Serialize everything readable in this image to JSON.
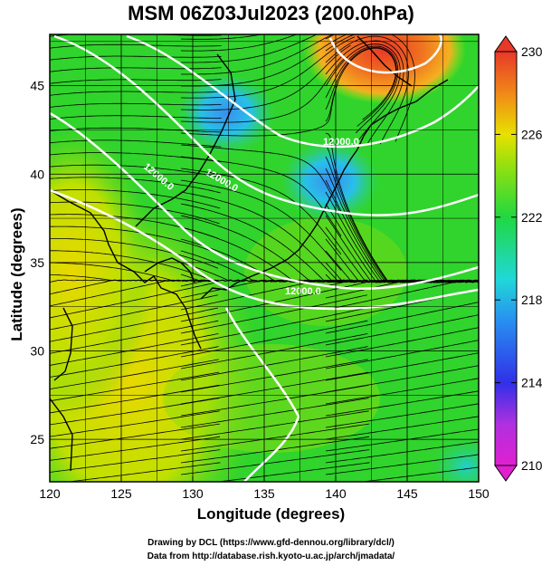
{
  "title": "MSM 06Z03Jul2023 (200.0hPa)",
  "x_axis": {
    "label": "Longitude (degrees)",
    "ticks": [
      "120",
      "125",
      "130",
      "135",
      "140",
      "145",
      "150"
    ]
  },
  "y_axis": {
    "label": "Latitude  (degrees)",
    "ticks": [
      "25",
      "30",
      "35",
      "40",
      "45"
    ]
  },
  "colorbar": {
    "ticks": [
      "230",
      "226",
      "222",
      "218",
      "214",
      "210"
    ],
    "min": 210,
    "max": 230
  },
  "contours": [
    {
      "label": "12000.0"
    },
    {
      "label": "12000.0"
    },
    {
      "label": "12000.0"
    },
    {
      "label": "12000.0"
    }
  ],
  "credits": {
    "line1": "Drawing by DCL (https://www.gfd-dennou.org/library/dcl/)",
    "line2": "Data from http://database.rish.kyoto-u.ac.jp/arch/jmadata/"
  },
  "colors": {
    "green": "#2fd52a",
    "yellow_green": "#a8e000",
    "yellow": "#e8e000",
    "orange": "#f08a10",
    "red": "#e84030",
    "cyan": "#20c8d0",
    "blue": "#4aa0f0",
    "contour": "#ffffff",
    "coast": "#000000"
  }
}
